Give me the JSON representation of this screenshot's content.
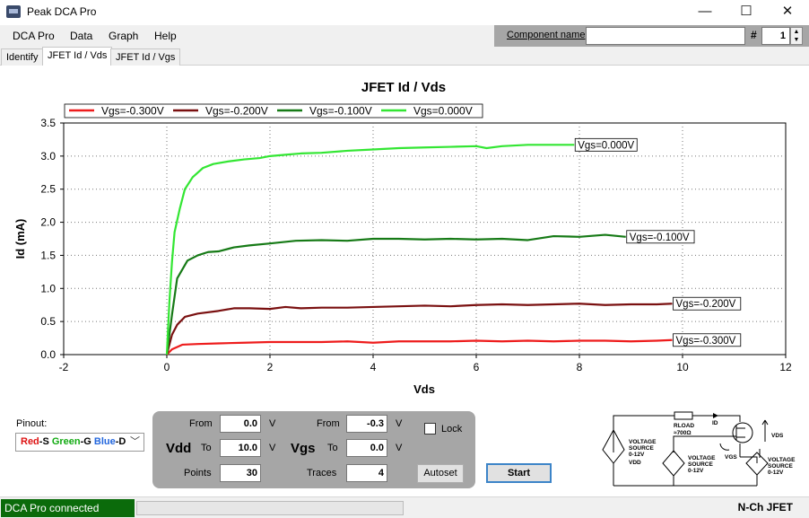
{
  "window": {
    "title": "Peak DCA Pro",
    "controls": {
      "minimize": "—",
      "maximize": "☐",
      "close": "✕"
    }
  },
  "menu": [
    "DCA Pro",
    "Data",
    "Graph",
    "Help"
  ],
  "component": {
    "label": "Component name",
    "value": "",
    "hash": "#",
    "number": "1"
  },
  "tabs": [
    "Identify",
    "JFET Id / Vds",
    "JFET Id / Vgs"
  ],
  "active_tab": 1,
  "chart_data": {
    "type": "line",
    "title": "JFET Id / Vds",
    "xlabel": "Vds",
    "ylabel": "Id (mA)",
    "xlim": [
      -2,
      12
    ],
    "ylim": [
      0,
      3.5
    ],
    "xticks": [
      "-2",
      "0",
      "2",
      "4",
      "6",
      "8",
      "10",
      "12"
    ],
    "yticks": [
      "0.0",
      "0.5",
      "1.0",
      "1.5",
      "2.0",
      "2.5",
      "3.0",
      "3.5"
    ],
    "grid": true,
    "legend_position": "top-left",
    "series": [
      {
        "name": "Vgs=-0.300V",
        "color": "#ee1c1c",
        "end_label": "Vgs=-0.300V",
        "x": [
          0,
          0.1,
          0.3,
          0.6,
          1,
          1.5,
          2,
          2.5,
          3,
          3.5,
          4,
          4.5,
          5,
          5.5,
          6,
          6.5,
          7,
          7.5,
          8,
          8.5,
          9,
          9.5,
          9.8
        ],
        "y": [
          0,
          0.08,
          0.15,
          0.16,
          0.17,
          0.18,
          0.19,
          0.19,
          0.19,
          0.2,
          0.18,
          0.2,
          0.2,
          0.2,
          0.21,
          0.2,
          0.21,
          0.2,
          0.21,
          0.21,
          0.2,
          0.21,
          0.22
        ]
      },
      {
        "name": "Vgs=-0.200V",
        "color": "#7a1010",
        "end_label": "Vgs=-0.200V",
        "x": [
          0,
          0.1,
          0.2,
          0.35,
          0.6,
          1,
          1.3,
          1.6,
          2,
          2.3,
          2.6,
          3,
          3.5,
          4,
          4.5,
          5,
          5.5,
          6,
          6.5,
          7,
          7.5,
          8,
          8.5,
          9,
          9.5,
          9.8
        ],
        "y": [
          0,
          0.3,
          0.45,
          0.57,
          0.62,
          0.66,
          0.7,
          0.7,
          0.69,
          0.72,
          0.7,
          0.71,
          0.71,
          0.72,
          0.73,
          0.74,
          0.73,
          0.75,
          0.76,
          0.75,
          0.76,
          0.77,
          0.75,
          0.76,
          0.76,
          0.77
        ]
      },
      {
        "name": "Vgs=-0.100V",
        "color": "#167a16",
        "end_label": "Vgs=-0.100V",
        "x": [
          0,
          0.1,
          0.2,
          0.4,
          0.6,
          0.8,
          1,
          1.3,
          1.6,
          2,
          2.5,
          3,
          3.5,
          4,
          4.5,
          5,
          5.5,
          6,
          6.5,
          7,
          7.5,
          8,
          8.5,
          8.9
        ],
        "y": [
          0,
          0.6,
          1.15,
          1.42,
          1.5,
          1.55,
          1.56,
          1.62,
          1.65,
          1.68,
          1.72,
          1.73,
          1.72,
          1.75,
          1.75,
          1.74,
          1.75,
          1.74,
          1.75,
          1.73,
          1.79,
          1.78,
          1.81,
          1.78
        ]
      },
      {
        "name": "Vgs=0.000V",
        "color": "#33e633",
        "end_label": "Vgs=0.000V",
        "x": [
          0,
          0.05,
          0.1,
          0.15,
          0.25,
          0.35,
          0.5,
          0.7,
          0.9,
          1.2,
          1.5,
          1.8,
          2,
          2.3,
          2.6,
          3,
          3.5,
          4,
          4.5,
          5,
          5.5,
          6,
          6.2,
          6.5,
          7,
          7.5,
          7.9
        ],
        "y": [
          0,
          0.8,
          1.4,
          1.85,
          2.2,
          2.5,
          2.68,
          2.82,
          2.88,
          2.92,
          2.95,
          2.97,
          3.0,
          3.02,
          3.04,
          3.05,
          3.08,
          3.1,
          3.12,
          3.13,
          3.14,
          3.15,
          3.12,
          3.15,
          3.17,
          3.17,
          3.17
        ]
      }
    ]
  },
  "pinout": {
    "label": "Pinout:",
    "parts": [
      {
        "text": "Red",
        "color": "#dd1111"
      },
      {
        "text": "-S ",
        "color": "#000000"
      },
      {
        "text": "Green",
        "color": "#11aa11"
      },
      {
        "text": "-G ",
        "color": "#000000"
      },
      {
        "text": "Blue",
        "color": "#2266dd"
      },
      {
        "text": "-D",
        "color": "#000000"
      }
    ]
  },
  "controls": {
    "vdd": {
      "name": "Vdd",
      "from_label": "From",
      "to_label": "To",
      "points_label": "Points",
      "from": "0.0",
      "to": "10.0",
      "points": "30",
      "unit": "V"
    },
    "vgs": {
      "name": "Vgs",
      "from_label": "From",
      "to_label": "To",
      "traces_label": "Traces",
      "from": "-0.3",
      "to": "0.0",
      "traces": "4",
      "unit": "V"
    },
    "lock_label": "Lock",
    "autoset_label": "Autoset",
    "start_label": "Start"
  },
  "schematic": {
    "vdd_source": [
      "VOLTAGE",
      "SOURCE",
      "0-12V"
    ],
    "vdd_name": "VDD",
    "vgs_source": [
      "VOLTAGE",
      "SOURCE",
      "0-12V"
    ],
    "vds_source": [
      "VOLTAGE",
      "SOURCE",
      "0-12V"
    ],
    "rload": "RLOAD",
    "rload_value": "≈700Ω",
    "id_label": "ID",
    "vgs_label": "VGS",
    "vds_label": "VDS"
  },
  "status": {
    "connection": "DCA Pro connected",
    "device": "N-Ch JFET"
  }
}
